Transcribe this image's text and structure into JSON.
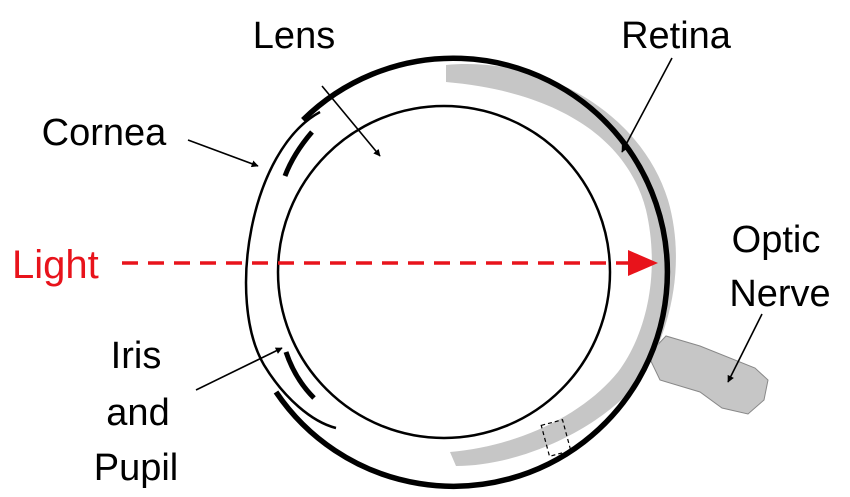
{
  "labels": {
    "lens": "Lens",
    "retina": "Retina",
    "cornea": "Cornea",
    "light": "Light",
    "optic_nerve_line1": "Optic",
    "optic_nerve_line2": "Nerve",
    "iris_line1": "Iris",
    "iris_line2": "and",
    "iris_line3": "Pupil"
  },
  "colors": {
    "light_ray": "#e8131b",
    "retina_fill": "#c6c6c6",
    "outline": "#000000",
    "background": "#ffffff"
  }
}
